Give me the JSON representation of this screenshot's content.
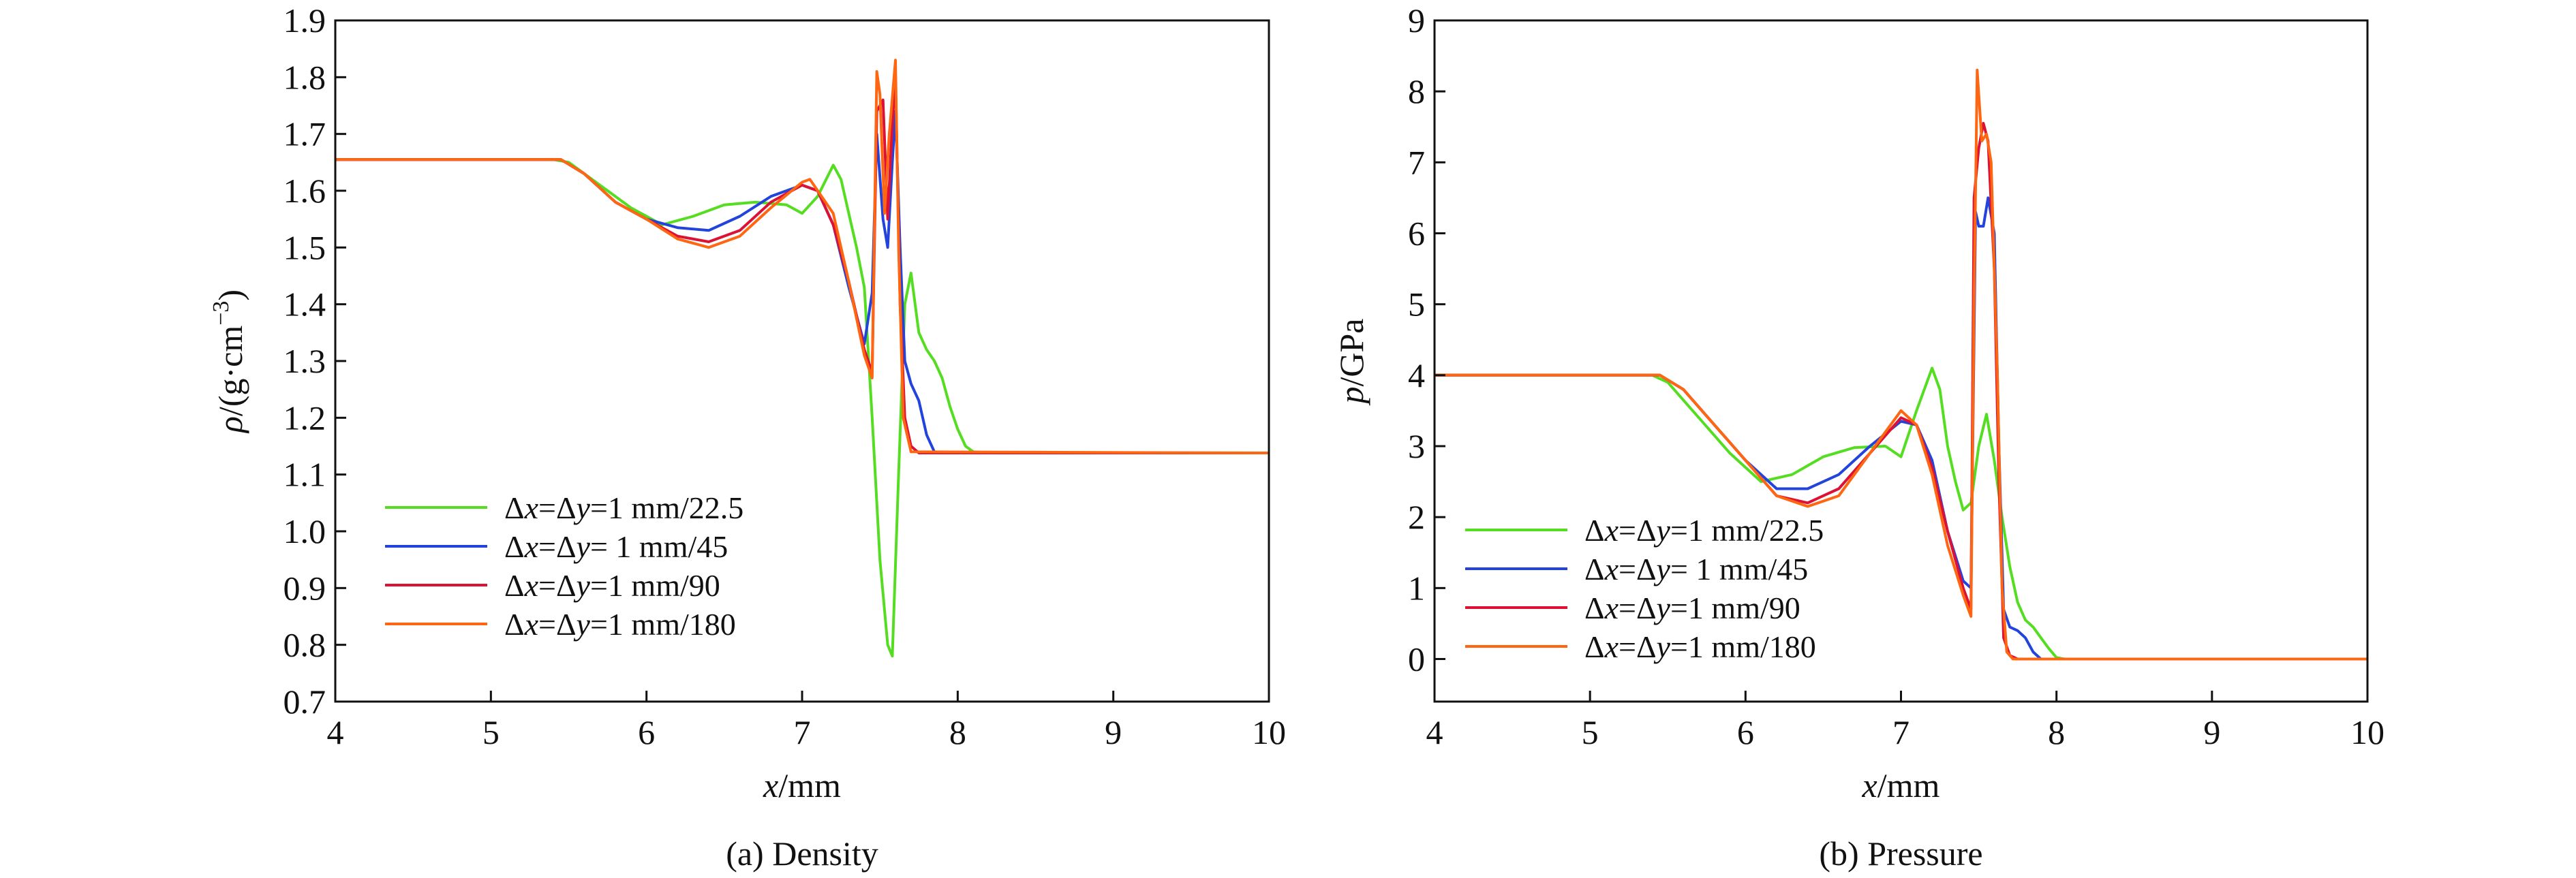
{
  "chart_data": [
    {
      "type": "line",
      "caption": "(a) Density",
      "xlabel_var": "x",
      "xlabel_unit": "/mm",
      "ylabel_var": "ρ",
      "ylabel_unit_pre": "/(g·cm",
      "ylabel_unit_sup": "−3",
      "ylabel_unit_post": ")",
      "xlim": [
        4,
        10
      ],
      "ylim": [
        0.7,
        1.9
      ],
      "xticks": [
        "4",
        "5",
        "6",
        "7",
        "8",
        "9",
        "10"
      ],
      "yticks": [
        "0.7",
        "0.8",
        "0.9",
        "1.0",
        "1.1",
        "1.2",
        "1.3",
        "1.4",
        "1.5",
        "1.6",
        "1.7",
        "1.8",
        "1.9"
      ],
      "grid": false,
      "legend_position": "lower-left",
      "series": [
        {
          "name": "Δx=Δy=1 mm/22.5",
          "color": "#55dd22",
          "x": [
            4.0,
            5.4,
            5.5,
            5.7,
            5.9,
            6.1,
            6.3,
            6.5,
            6.7,
            6.9,
            7.0,
            7.1,
            7.2,
            7.25,
            7.3,
            7.35,
            7.4,
            7.45,
            7.5,
            7.55,
            7.58,
            7.62,
            7.66,
            7.7,
            7.75,
            7.8,
            7.85,
            7.9,
            7.95,
            8.0,
            8.05,
            8.1,
            8.2,
            10.0
          ],
          "y": [
            1.655,
            1.655,
            1.65,
            1.61,
            1.57,
            1.54,
            1.555,
            1.575,
            1.58,
            1.575,
            1.56,
            1.59,
            1.645,
            1.62,
            1.56,
            1.5,
            1.43,
            1.2,
            0.95,
            0.8,
            0.78,
            1.1,
            1.4,
            1.455,
            1.35,
            1.32,
            1.3,
            1.27,
            1.22,
            1.18,
            1.15,
            1.14,
            1.138,
            1.138
          ]
        },
        {
          "name": "Δx=Δy= 1 mm/45",
          "color": "#2244dd",
          "x": [
            4.0,
            5.45,
            5.6,
            5.8,
            6.0,
            6.2,
            6.4,
            6.6,
            6.8,
            7.0,
            7.1,
            7.2,
            7.3,
            7.4,
            7.45,
            7.48,
            7.52,
            7.55,
            7.58,
            7.6,
            7.63,
            7.66,
            7.7,
            7.75,
            7.8,
            7.85,
            7.9,
            10.0
          ],
          "y": [
            1.655,
            1.655,
            1.63,
            1.58,
            1.55,
            1.535,
            1.53,
            1.555,
            1.59,
            1.61,
            1.6,
            1.54,
            1.43,
            1.33,
            1.42,
            1.7,
            1.55,
            1.5,
            1.65,
            1.74,
            1.5,
            1.3,
            1.26,
            1.23,
            1.17,
            1.14,
            1.138,
            1.138
          ]
        },
        {
          "name": "Δx=Δy=1 mm/90",
          "color": "#dd1133",
          "x": [
            4.0,
            5.45,
            5.6,
            5.8,
            6.0,
            6.2,
            6.4,
            6.6,
            6.8,
            7.0,
            7.1,
            7.2,
            7.3,
            7.4,
            7.45,
            7.48,
            7.52,
            7.55,
            7.58,
            7.6,
            7.63,
            7.66,
            7.7,
            7.75,
            10.0
          ],
          "y": [
            1.655,
            1.655,
            1.63,
            1.58,
            1.55,
            1.52,
            1.51,
            1.53,
            1.58,
            1.61,
            1.6,
            1.54,
            1.44,
            1.32,
            1.28,
            1.74,
            1.76,
            1.55,
            1.72,
            1.8,
            1.4,
            1.2,
            1.15,
            1.138,
            1.138
          ]
        },
        {
          "name": "Δx=Δy=1 mm/180",
          "color": "#ff6611",
          "x": [
            4.0,
            5.45,
            5.6,
            5.8,
            6.0,
            6.2,
            6.4,
            6.6,
            6.8,
            7.0,
            7.05,
            7.2,
            7.3,
            7.4,
            7.45,
            7.48,
            7.5,
            7.53,
            7.56,
            7.6,
            7.62,
            7.65,
            7.7,
            10.0
          ],
          "y": [
            1.655,
            1.655,
            1.63,
            1.58,
            1.55,
            1.515,
            1.5,
            1.52,
            1.57,
            1.615,
            1.62,
            1.56,
            1.44,
            1.31,
            1.27,
            1.81,
            1.77,
            1.56,
            1.7,
            1.83,
            1.5,
            1.2,
            1.14,
            1.138
          ]
        }
      ]
    },
    {
      "type": "line",
      "caption": "(b) Pressure",
      "xlabel_var": "x",
      "xlabel_unit": "/mm",
      "ylabel_var": "p",
      "ylabel_unit_pre": "/GPa",
      "ylabel_unit_sup": "",
      "ylabel_unit_post": "",
      "xlim": [
        4,
        10
      ],
      "ylim": [
        -0.6,
        9
      ],
      "xticks": [
        "4",
        "5",
        "6",
        "7",
        "8",
        "9",
        "10"
      ],
      "yticks": [
        "0",
        "1",
        "2",
        "3",
        "4",
        "5",
        "6",
        "7",
        "8",
        "9"
      ],
      "grid": false,
      "legend_position": "lower-left",
      "series": [
        {
          "name": "Δx=Δy=1 mm/22.5",
          "color": "#55dd22",
          "x": [
            4.0,
            5.4,
            5.5,
            5.7,
            5.9,
            6.1,
            6.3,
            6.5,
            6.7,
            6.9,
            7.0,
            7.1,
            7.2,
            7.25,
            7.3,
            7.35,
            7.4,
            7.45,
            7.5,
            7.55,
            7.6,
            7.65,
            7.7,
            7.75,
            7.8,
            7.85,
            7.9,
            7.95,
            8.0,
            8.05,
            10.0
          ],
          "y": [
            4.0,
            4.0,
            3.9,
            3.4,
            2.9,
            2.5,
            2.6,
            2.85,
            2.98,
            3.0,
            2.85,
            3.5,
            4.1,
            3.8,
            3.0,
            2.5,
            2.1,
            2.2,
            3.0,
            3.45,
            2.8,
            2.0,
            1.3,
            0.8,
            0.55,
            0.45,
            0.3,
            0.15,
            0.02,
            0.0,
            0.0
          ]
        },
        {
          "name": "Δx=Δy= 1 mm/45",
          "color": "#2244dd",
          "x": [
            4.0,
            5.45,
            5.6,
            5.8,
            6.0,
            6.2,
            6.4,
            6.6,
            6.8,
            7.0,
            7.1,
            7.2,
            7.3,
            7.4,
            7.45,
            7.48,
            7.5,
            7.53,
            7.56,
            7.6,
            7.63,
            7.66,
            7.7,
            7.75,
            7.8,
            7.85,
            7.9,
            10.0
          ],
          "y": [
            4.0,
            4.0,
            3.8,
            3.3,
            2.8,
            2.4,
            2.4,
            2.6,
            3.0,
            3.35,
            3.3,
            2.8,
            1.8,
            1.1,
            1.0,
            6.3,
            6.1,
            6.1,
            6.5,
            6.0,
            3.0,
            0.7,
            0.45,
            0.4,
            0.3,
            0.1,
            0.0,
            0.0
          ]
        },
        {
          "name": "Δx=Δy=1 mm/90",
          "color": "#dd1133",
          "x": [
            4.0,
            5.45,
            5.6,
            5.8,
            6.0,
            6.2,
            6.4,
            6.6,
            6.8,
            7.0,
            7.1,
            7.2,
            7.3,
            7.4,
            7.45,
            7.47,
            7.5,
            7.53,
            7.56,
            7.6,
            7.63,
            7.66,
            7.7,
            7.75,
            10.0
          ],
          "y": [
            4.0,
            4.0,
            3.8,
            3.3,
            2.8,
            2.3,
            2.2,
            2.4,
            2.9,
            3.4,
            3.3,
            2.7,
            1.8,
            1.0,
            0.7,
            6.5,
            7.2,
            7.55,
            7.3,
            5.5,
            2.5,
            0.3,
            0.05,
            0.0,
            0.0
          ]
        },
        {
          "name": "Δx=Δy=1 mm/180",
          "color": "#ff6611",
          "x": [
            4.0,
            5.45,
            5.6,
            5.8,
            6.0,
            6.2,
            6.4,
            6.6,
            6.8,
            7.0,
            7.1,
            7.2,
            7.3,
            7.4,
            7.45,
            7.47,
            7.49,
            7.52,
            7.55,
            7.58,
            7.62,
            7.65,
            7.68,
            7.72,
            10.0
          ],
          "y": [
            4.0,
            4.0,
            3.8,
            3.3,
            2.8,
            2.3,
            2.15,
            2.3,
            2.9,
            3.5,
            3.3,
            2.6,
            1.6,
            0.9,
            0.6,
            5.0,
            8.3,
            7.3,
            7.4,
            7.0,
            4.0,
            1.0,
            0.1,
            0.0,
            0.0
          ]
        }
      ]
    }
  ]
}
